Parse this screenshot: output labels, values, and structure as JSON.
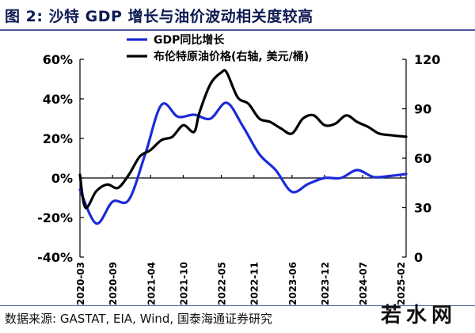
{
  "title": "图 2:  沙特 GDP 增长与油价波动相关度较高",
  "source": "数据来源:  GASTAT, EIA, Wind, 国泰海通证券研究",
  "watermark": "若水网",
  "chart_data": {
    "type": "line",
    "legend_placement": "top-center",
    "grid": false,
    "x_ticks": [
      "2020-03",
      "2020-09",
      "2021-04",
      "2021-10",
      "2022-05",
      "2022-11",
      "2023-06",
      "2023-12",
      "2024-07",
      "2025-02"
    ],
    "y_left": {
      "range": [
        -40,
        60
      ],
      "ticks": [
        "60%",
        "40%",
        "20%",
        "0%",
        "-20%",
        "-40%"
      ],
      "tick_values": [
        60,
        40,
        20,
        0,
        -20,
        -40
      ]
    },
    "y_right": {
      "range": [
        0,
        120
      ],
      "ticks": [
        "120",
        "90",
        "60",
        "30",
        "0"
      ],
      "tick_values": [
        120,
        90,
        60,
        30,
        0
      ]
    },
    "series": [
      {
        "name": "GDP同比增长",
        "axis": "left",
        "color": "#1c2bd6",
        "x": [
          "2020-03",
          "2020-06",
          "2020-09",
          "2020-12",
          "2021-03",
          "2021-06",
          "2021-09",
          "2021-12",
          "2022-03",
          "2022-06",
          "2022-09",
          "2022-12",
          "2023-03",
          "2023-06",
          "2023-09",
          "2023-12",
          "2024-03",
          "2024-06",
          "2024-09",
          "2024-12",
          "2025-03"
        ],
        "values": [
          -6,
          -23,
          -12,
          -11,
          12,
          37,
          31,
          32,
          30,
          38,
          26,
          12,
          4,
          -7,
          -3,
          0,
          0,
          4,
          0.5,
          1,
          2
        ]
      },
      {
        "name": "布伦特原油价格(右轴, 美元/桶)",
        "axis": "right",
        "color": "#000000",
        "x": [
          "2020-03",
          "2020-04",
          "2020-06",
          "2020-08",
          "2020-10",
          "2020-12",
          "2021-02",
          "2021-04",
          "2021-06",
          "2021-08",
          "2021-10",
          "2021-12",
          "2022-01",
          "2022-03",
          "2022-05",
          "2022-06",
          "2022-08",
          "2022-10",
          "2022-12",
          "2023-02",
          "2023-04",
          "2023-06",
          "2023-08",
          "2023-10",
          "2023-12",
          "2024-02",
          "2024-04",
          "2024-06",
          "2024-08",
          "2024-10",
          "2024-12",
          "2025-03"
        ],
        "values": [
          50,
          30,
          40,
          44,
          42,
          50,
          61,
          65,
          71,
          73,
          80,
          76,
          88,
          105,
          112,
          112,
          97,
          93,
          84,
          82,
          78,
          75,
          84,
          86,
          80,
          81,
          86,
          82,
          79,
          75,
          74,
          73
        ]
      }
    ]
  }
}
